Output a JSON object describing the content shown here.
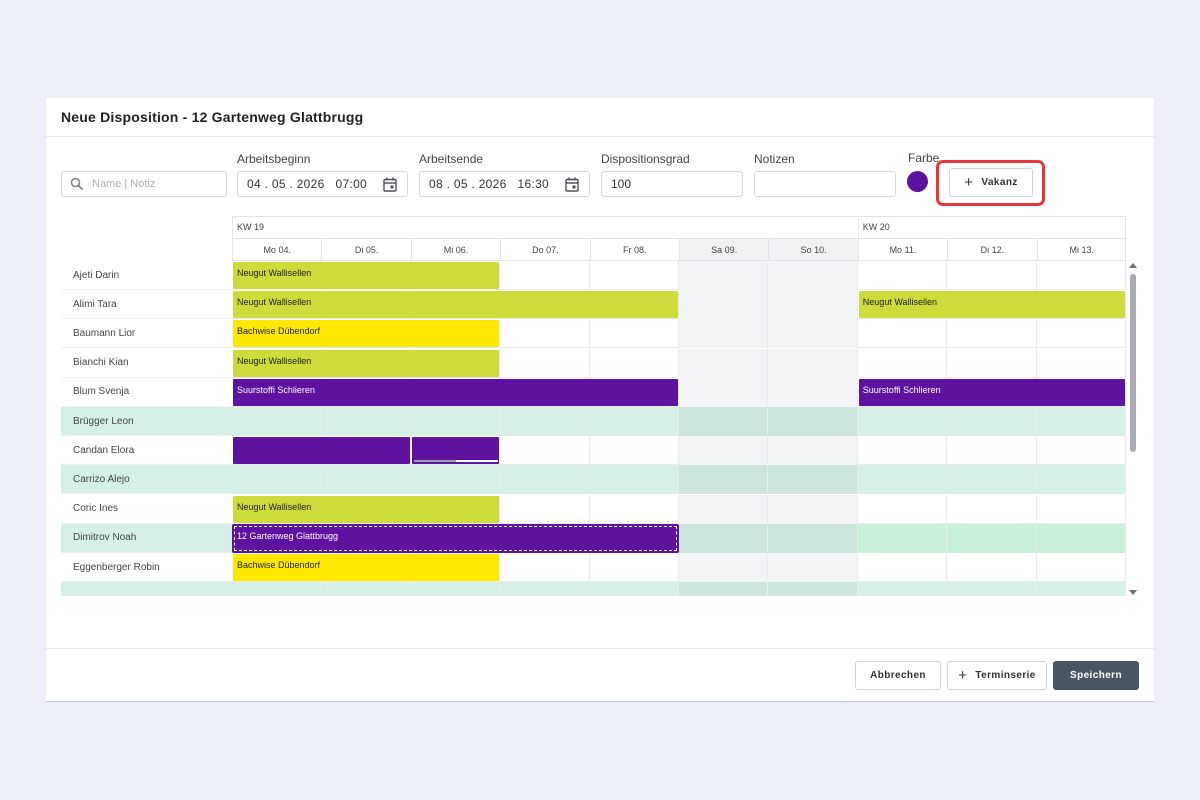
{
  "dialog": {
    "title": "Neue Disposition - 12 Gartenweg Glattbrugg"
  },
  "search": {
    "placeholder": "Name | Notiz"
  },
  "form": {
    "arbeitsbeginn_label": "Arbeitsbeginn",
    "arbeitsbeginn_value": "04 . 05 . 2026   07:00",
    "arbeitsende_label": "Arbeitsende",
    "arbeitsende_value": "08 . 05 . 2026   16:30",
    "dispositionsgrad_label": "Dispositionsgrad",
    "dispositionsgrad_value": "100",
    "notizen_label": "Notizen",
    "notizen_value": "",
    "farbe_label": "Farbe",
    "farbe_color": "#5e12a0",
    "vakanz_label": "Vakanz"
  },
  "calendar": {
    "weeks": [
      {
        "label": "KW 19"
      },
      {
        "label": "KW 20"
      }
    ],
    "days": [
      {
        "label": "Mo 04.",
        "weekend": false
      },
      {
        "label": "Di 05.",
        "weekend": false
      },
      {
        "label": "Mi 06.",
        "weekend": false
      },
      {
        "label": "Do 07.",
        "weekend": false
      },
      {
        "label": "Fr 08.",
        "weekend": false
      },
      {
        "label": "Sa 09.",
        "weekend": true
      },
      {
        "label": "So 10.",
        "weekend": true
      },
      {
        "label": "Mo 11.",
        "weekend": false
      },
      {
        "label": "Di 12.",
        "weekend": false
      },
      {
        "label": "Mi 13.",
        "weekend": false
      }
    ],
    "employees": [
      {
        "name": "Ajeti Darin",
        "highlight": false,
        "bars": [
          {
            "label": "Neugut Wallisellen",
            "start": 0,
            "span": 3,
            "color": "lime"
          }
        ]
      },
      {
        "name": "Alimi Tara",
        "highlight": false,
        "bars": [
          {
            "label": "Neugut Wallisellen",
            "start": 0,
            "span": 5,
            "color": "lime"
          },
          {
            "label": "Neugut Wallisellen",
            "start": 7,
            "span": 3,
            "color": "lime"
          }
        ]
      },
      {
        "name": "Baumann Lior",
        "highlight": false,
        "bars": [
          {
            "label": "Bachwise Dübendorf",
            "start": 0,
            "span": 3,
            "color": "yellow"
          }
        ]
      },
      {
        "name": "Bianchi Kian",
        "highlight": false,
        "bars": [
          {
            "label": "Neugut Wallisellen",
            "start": 0,
            "span": 3,
            "color": "lime"
          }
        ]
      },
      {
        "name": "Blum Svenja",
        "highlight": false,
        "bars": [
          {
            "label": "Suurstoffi Schlieren",
            "start": 0,
            "span": 5,
            "color": "purple"
          },
          {
            "label": "Suurstoffi Schlieren",
            "start": 7,
            "span": 3,
            "color": "purple"
          }
        ]
      },
      {
        "name": "Brügger Leon",
        "highlight": true,
        "bars": []
      },
      {
        "name": "Candan Elora",
        "highlight": false,
        "bars": [
          {
            "label": "",
            "start": 0,
            "span": 2,
            "color": "purple"
          },
          {
            "label": "",
            "start": 2,
            "span": 1,
            "color": "purple",
            "progress": 0.5
          }
        ]
      },
      {
        "name": "Carrizo Alejo",
        "highlight": true,
        "bars": []
      },
      {
        "name": "Coric Ines",
        "highlight": false,
        "bars": [
          {
            "label": "Neugut Wallisellen",
            "start": 0,
            "span": 3,
            "color": "lime"
          }
        ]
      },
      {
        "name": "Dimitrov Noah",
        "highlight": true,
        "selected": true,
        "bars": [
          {
            "label": "12 Gartenweg Glattbrugg",
            "start": 0,
            "span": 5,
            "color": "purple",
            "dashed": true
          }
        ]
      },
      {
        "name": "Eggenberger Robin",
        "highlight": false,
        "bars": [
          {
            "label": "Bachwise Dübendorf",
            "start": 0,
            "span": 3,
            "color": "yellow"
          }
        ]
      },
      {
        "name": "",
        "highlight": true,
        "bars": []
      }
    ]
  },
  "footer": {
    "cancel_label": "Abbrechen",
    "terminserie_label": "Terminserie",
    "save_label": "Speichern"
  }
}
